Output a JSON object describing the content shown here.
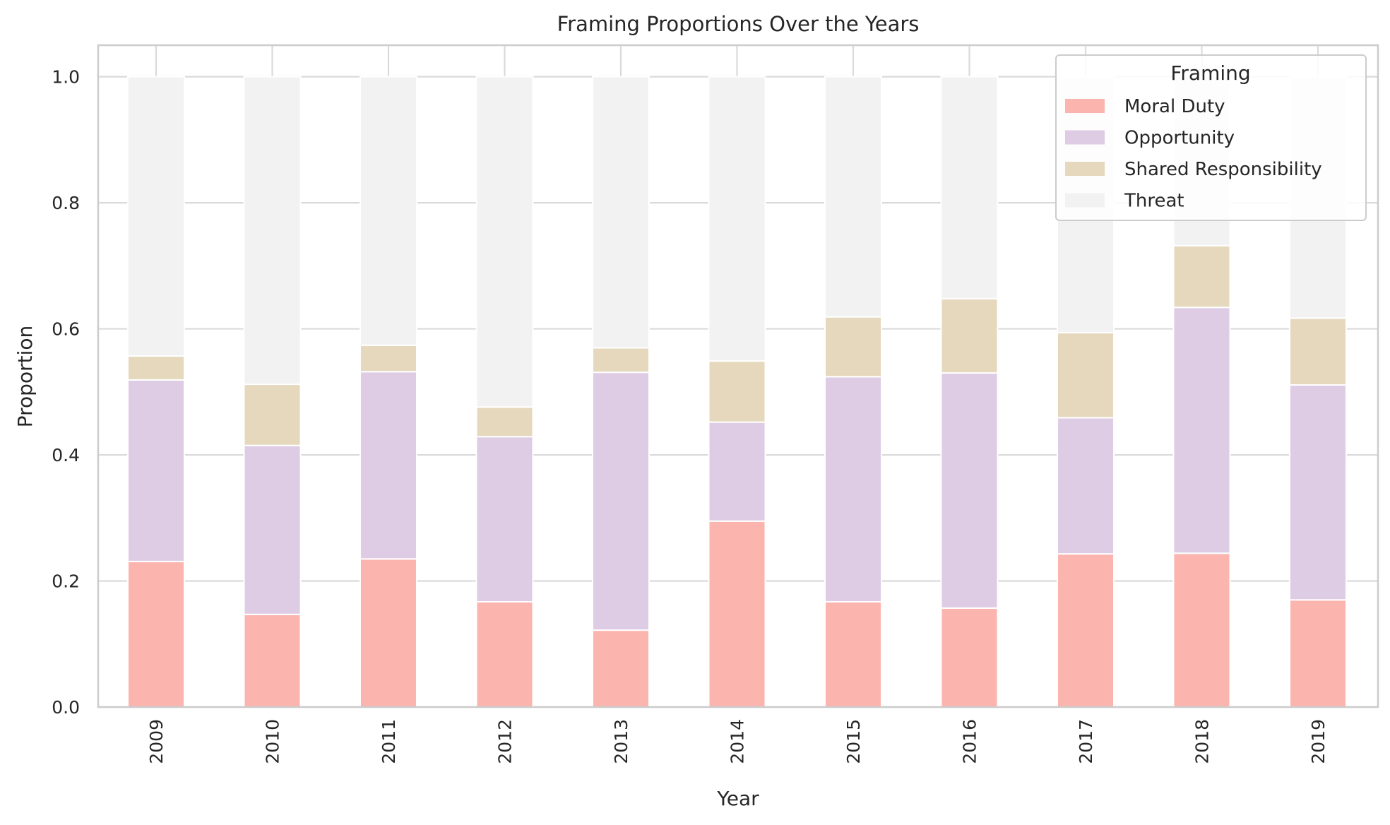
{
  "chart_data": {
    "type": "bar",
    "stacked": true,
    "title": "Framing Proportions Over the Years",
    "xlabel": "Year",
    "ylabel": "Proportion",
    "ylim": [
      0,
      1.05
    ],
    "yticks": [
      "0.0",
      "0.2",
      "0.4",
      "0.6",
      "0.8",
      "1.0"
    ],
    "grid": true,
    "legend": {
      "title": "Framing",
      "position": "top-right"
    },
    "categories": [
      "2009",
      "2010",
      "2011",
      "2012",
      "2013",
      "2014",
      "2015",
      "2016",
      "2017",
      "2018",
      "2019"
    ],
    "series": [
      {
        "name": "Moral Duty",
        "color": "#fbb4ae",
        "values": [
          0.231,
          0.147,
          0.235,
          0.167,
          0.122,
          0.295,
          0.167,
          0.157,
          0.243,
          0.244,
          0.17
        ]
      },
      {
        "name": "Opportunity",
        "color": "#decbe4",
        "values": [
          0.288,
          0.268,
          0.297,
          0.262,
          0.409,
          0.157,
          0.357,
          0.373,
          0.216,
          0.39,
          0.341
        ]
      },
      {
        "name": "Shared Responsibility",
        "color": "#e5d8bd",
        "values": [
          0.038,
          0.097,
          0.042,
          0.047,
          0.039,
          0.097,
          0.095,
          0.118,
          0.135,
          0.098,
          0.106
        ]
      },
      {
        "name": "Threat",
        "color": "#f2f2f2",
        "values": [
          0.443,
          0.488,
          0.426,
          0.524,
          0.43,
          0.451,
          0.381,
          0.352,
          0.406,
          0.268,
          0.383
        ]
      }
    ]
  }
}
